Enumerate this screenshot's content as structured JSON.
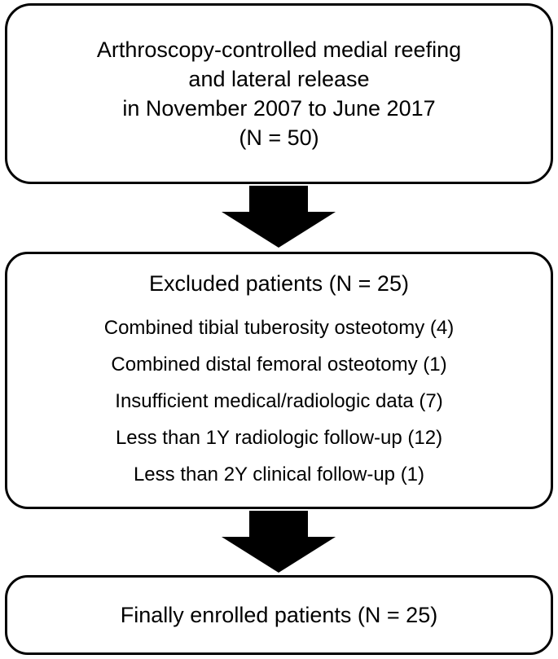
{
  "top_box": {
    "lines": [
      "Arthroscopy-controlled medial reefing",
      "and lateral release",
      "in November 2007 to June 2017",
      "(N = 50)"
    ]
  },
  "excluded_box": {
    "title": "Excluded patients (N = 25)",
    "items": [
      "Combined tibial tuberosity osteotomy (4)",
      "Combined distal femoral osteotomy (1)",
      "Insufficient medical/radiologic data (7)",
      "Less than 1Y radiologic follow-up (12)",
      "Less than 2Y clinical follow-up (1)"
    ]
  },
  "final_box": {
    "text": "Finally enrolled patients (N = 25)"
  },
  "colors": {
    "stroke": "#000000",
    "fill": "#ffffff",
    "arrow": "#000000"
  }
}
